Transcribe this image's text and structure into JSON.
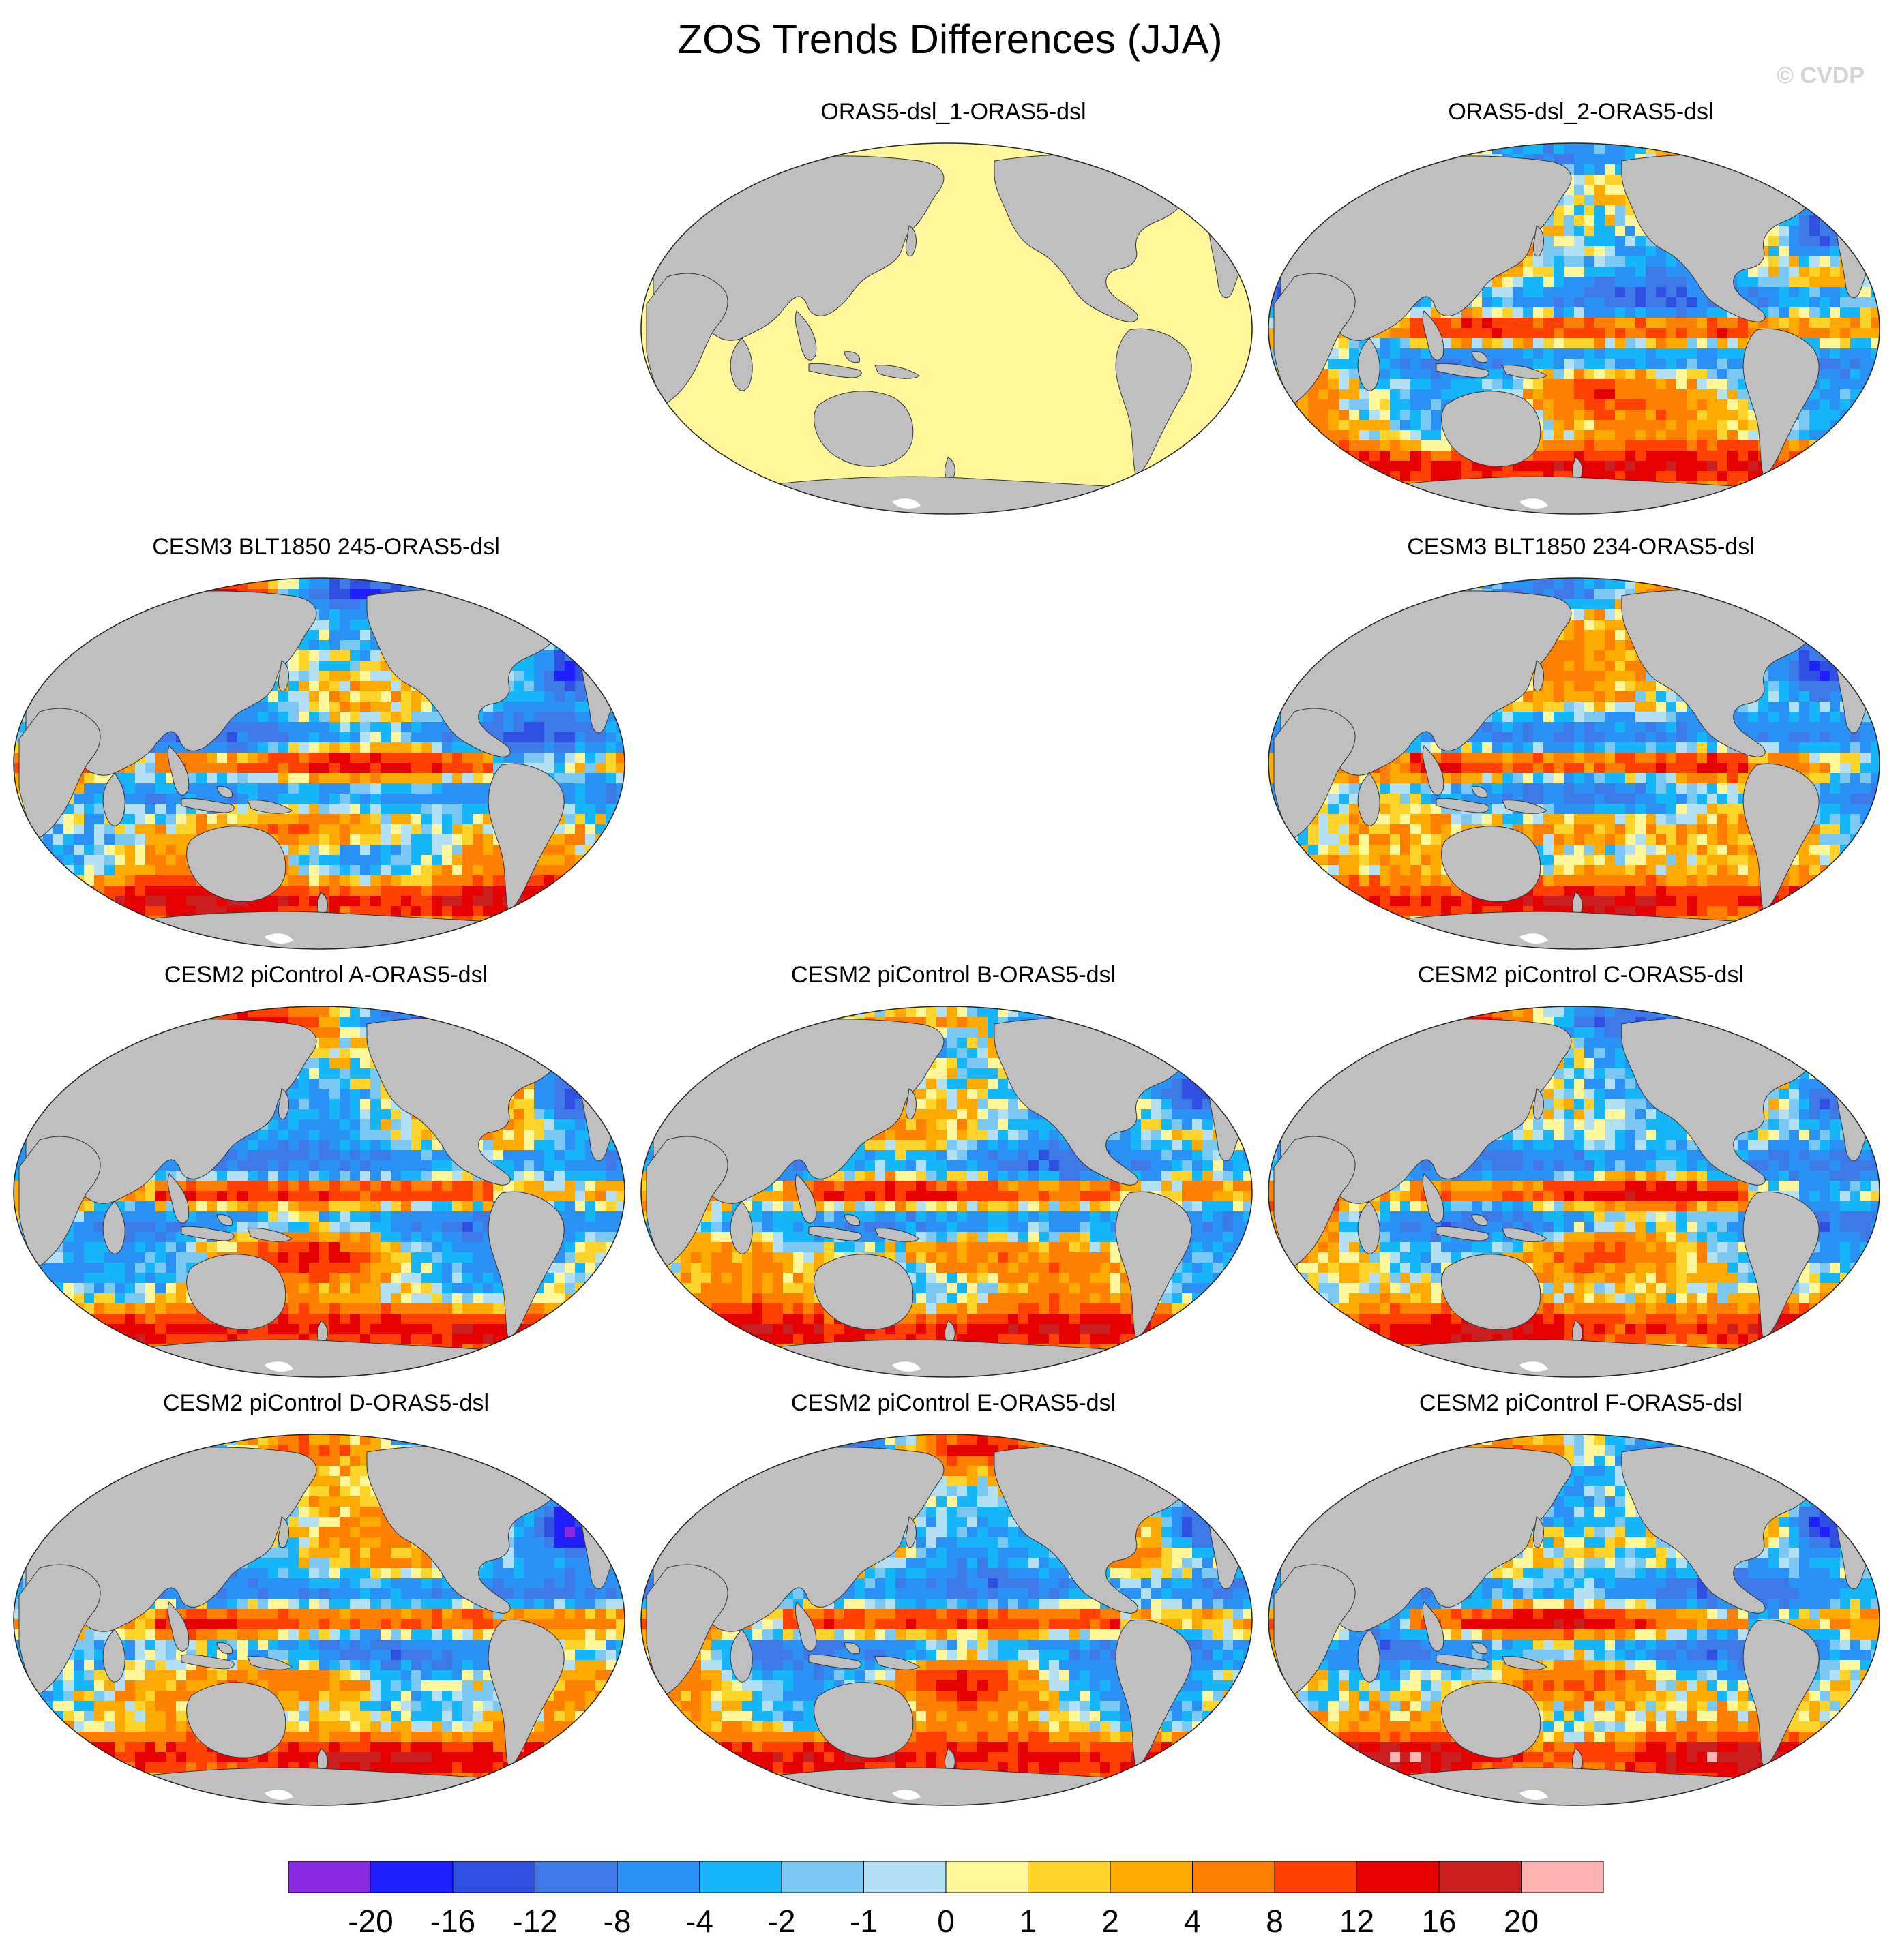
{
  "title": "ZOS Trends Differences (JJA)",
  "watermark": "© CVDP",
  "colors": {
    "land": "#bfbfbf",
    "antarctic_ice": "#ffffff",
    "uniform_field": "#fff799"
  },
  "panels": [
    {
      "title": "ORAS5-dsl_1-ORAS5-dsl",
      "row": 0,
      "col": 1,
      "mode": "uniform",
      "seed": 0
    },
    {
      "title": "ORAS5-dsl_2-ORAS5-dsl",
      "row": 0,
      "col": 2,
      "mode": "field",
      "seed": 11
    },
    {
      "title": "CESM3 BLT1850 245-ORAS5-dsl",
      "row": 1,
      "col": 0,
      "mode": "field",
      "seed": 23
    },
    {
      "title": "CESM3 BLT1850 234-ORAS5-dsl",
      "row": 1,
      "col": 2,
      "mode": "field",
      "seed": 37
    },
    {
      "title": "CESM2 piControl A-ORAS5-dsl",
      "row": 2,
      "col": 0,
      "mode": "field",
      "seed": 41
    },
    {
      "title": "CESM2 piControl B-ORAS5-dsl",
      "row": 2,
      "col": 1,
      "mode": "field",
      "seed": 53
    },
    {
      "title": "CESM2 piControl C-ORAS5-dsl",
      "row": 2,
      "col": 2,
      "mode": "field",
      "seed": 67
    },
    {
      "title": "CESM2 piControl D-ORAS5-dsl",
      "row": 3,
      "col": 0,
      "mode": "field",
      "seed": 71
    },
    {
      "title": "CESM2 piControl E-ORAS5-dsl",
      "row": 3,
      "col": 1,
      "mode": "field",
      "seed": 83
    },
    {
      "title": "CESM2 piControl F-ORAS5-dsl",
      "row": 3,
      "col": 2,
      "mode": "field",
      "seed": 97
    }
  ],
  "colorbar": {
    "colors": [
      "#8a2be2",
      "#1f1fff",
      "#2e4fe0",
      "#3d7ae8",
      "#2a92f6",
      "#16b6fb",
      "#7cc8f4",
      "#b3e0f5",
      "#fff799",
      "#ffd42a",
      "#ffaa00",
      "#ff7f00",
      "#ff4000",
      "#e60000",
      "#cc1f1f",
      "#ffb3b3"
    ],
    "labels": [
      "-20",
      "-16",
      "-12",
      "-8",
      "-4",
      "-2",
      "-1",
      "0",
      "1",
      "2",
      "4",
      "8",
      "12",
      "16",
      "20"
    ]
  }
}
